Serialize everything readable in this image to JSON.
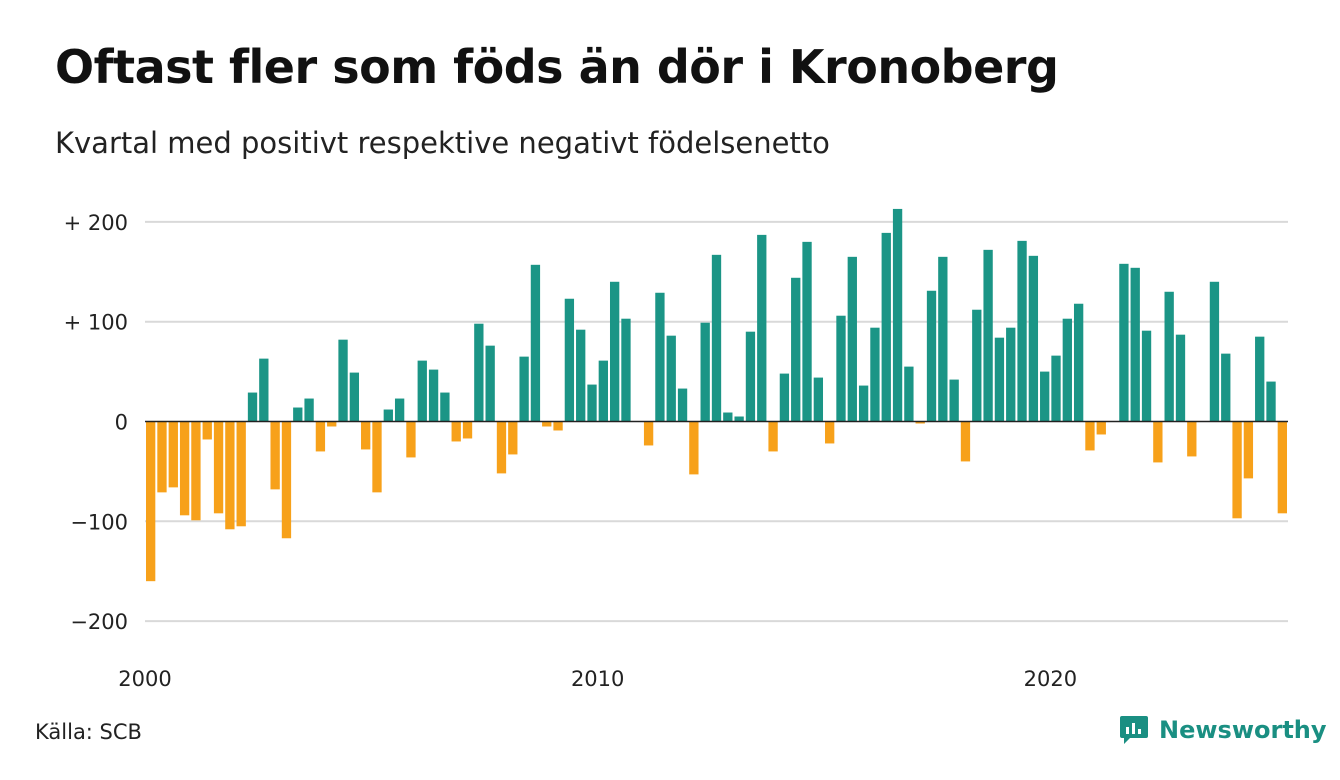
{
  "header": {
    "title": "Oftast fler som föds än dör i Kronoberg",
    "subtitle": "Kvartal med positivt respektive negativt födelsenetto"
  },
  "footer": {
    "source": "Källa: SCB",
    "brand": "Newsworthy"
  },
  "colors": {
    "positive": "#1b9586",
    "negative": "#f7a11a",
    "grid": "#d9d9d9",
    "axis": "#222222",
    "brand": "#1a8f82"
  },
  "chart_data": {
    "type": "bar",
    "title": "Oftast fler som föds än dör i Kronoberg",
    "subtitle": "Kvartal med positivt respektive negativt födelsenetto",
    "x_start": 2000.0,
    "x_step": 0.25,
    "xlim": [
      2000,
      2025.25
    ],
    "ylim": [
      -200,
      215
    ],
    "y_ticks": [
      200,
      100,
      0,
      -100,
      -200
    ],
    "y_tick_labels": [
      "+ 200",
      "+ 100",
      "0",
      "−100",
      "−200"
    ],
    "x_ticks": [
      2000,
      2010,
      2020
    ],
    "x_tick_labels": [
      "2000",
      "2010",
      "2020"
    ],
    "grid": true,
    "values": [
      -160,
      -71,
      -66,
      -94,
      -99,
      -18,
      -92,
      -108,
      -105,
      29,
      63,
      -68,
      -117,
      14,
      23,
      -30,
      -5,
      82,
      49,
      -28,
      -71,
      12,
      23,
      -36,
      61,
      52,
      29,
      -20,
      -17,
      98,
      76,
      -52,
      -33,
      65,
      157,
      -5,
      -9,
      123,
      92,
      37,
      61,
      140,
      103,
      0,
      -24,
      129,
      86,
      33,
      -53,
      99,
      167,
      9,
      5,
      90,
      187,
      -30,
      48,
      144,
      180,
      44,
      -22,
      106,
      165,
      36,
      94,
      189,
      213,
      55,
      -2,
      131,
      165,
      42,
      -40,
      112,
      172,
      84,
      94,
      181,
      166,
      50,
      66,
      103,
      118,
      -29,
      -13,
      0,
      158,
      154,
      91,
      -41,
      130,
      87,
      -35,
      0,
      140,
      68,
      -97,
      -57,
      85,
      40,
      -92
    ]
  }
}
